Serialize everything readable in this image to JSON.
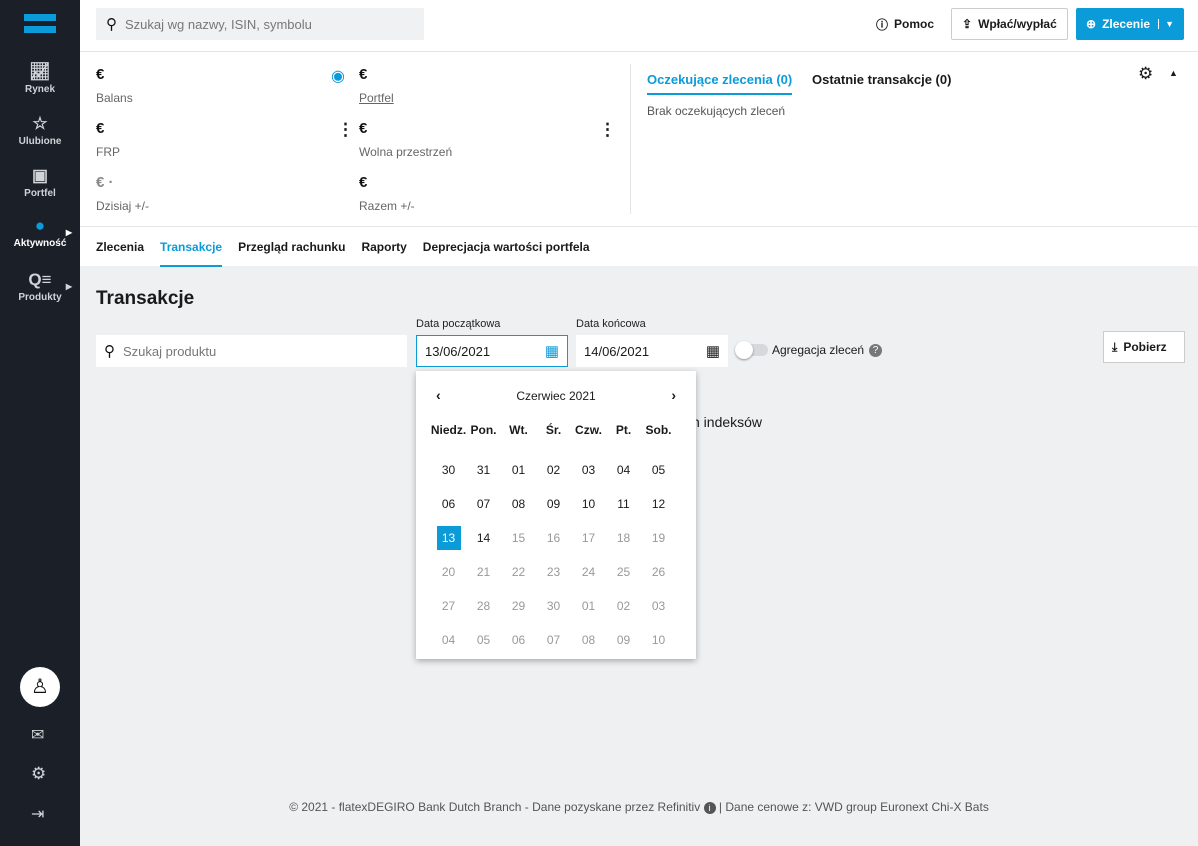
{
  "sidebar": {
    "items": [
      {
        "label": "Rynek",
        "icon": "chart-icon"
      },
      {
        "label": "Ulubione",
        "icon": "star-icon"
      },
      {
        "label": "Portfel",
        "icon": "wallet-icon"
      },
      {
        "label": "Aktywność",
        "icon": "clock-icon"
      },
      {
        "label": "Produkty",
        "icon": "search-list-icon"
      }
    ]
  },
  "header": {
    "search_placeholder": "Szukaj wg nazwy, ISIN, symbolu",
    "help": "Pomoc",
    "deposit": "Wpłać/wypłać",
    "order": "Zlecenie"
  },
  "summary": {
    "balance_value": "€",
    "balance_label": "Balans",
    "portfolio_value": "€",
    "portfolio_label": "Portfel",
    "frp_value": "€",
    "frp_label": "FRP",
    "free_value": "€",
    "free_label": "Wolna przestrzeń",
    "today_value": "€ ·",
    "today_label": "Dzisiaj +/-",
    "total_value": "€",
    "total_label": "Razem +/-",
    "pending_tab": "Oczekujące zlecenia (0)",
    "recent_tab": "Ostatnie transakcje (0)",
    "pending_empty": "Brak oczekujących zleceń"
  },
  "tabs": [
    "Zlecenia",
    "Transakcje",
    "Przegląd rachunku",
    "Raporty",
    "Deprecjacja wartości portfela"
  ],
  "page": {
    "title": "Transakcje",
    "product_placeholder": "Szukaj produktu",
    "start_label": "Data początkowa",
    "start_value": "13/06/2021",
    "end_label": "Data końcowa",
    "end_value": "14/06/2021",
    "aggregation_label": "Agregacja zleceń",
    "aggregation_on": false,
    "download": "Pobierz",
    "hidden_text": "ych indeksów"
  },
  "calendar": {
    "month": "Czerwiec 2021",
    "weekdays": [
      "Niedz.",
      "Pon.",
      "Wt.",
      "Śr.",
      "Czw.",
      "Pt.",
      "Sob."
    ],
    "days": [
      "30",
      "31",
      "01",
      "02",
      "03",
      "04",
      "05",
      "06",
      "07",
      "08",
      "09",
      "10",
      "11",
      "12",
      "13",
      "14",
      "15",
      "16",
      "17",
      "18",
      "19",
      "20",
      "21",
      "22",
      "23",
      "24",
      "25",
      "26",
      "27",
      "28",
      "29",
      "30",
      "01",
      "02",
      "03",
      "04",
      "05",
      "06",
      "07",
      "08",
      "09",
      "10"
    ],
    "selected": "13"
  },
  "footer": {
    "text": "© 2021 - flatexDEGIRO Bank Dutch Branch - Dane pozyskane przez Refinitiv",
    "prices": "| Dane cenowe z:  VWD group Euronext Chi-X Bats"
  },
  "colors": {
    "accent": "#0b9bd9",
    "sidebar": "#1b1f27"
  }
}
